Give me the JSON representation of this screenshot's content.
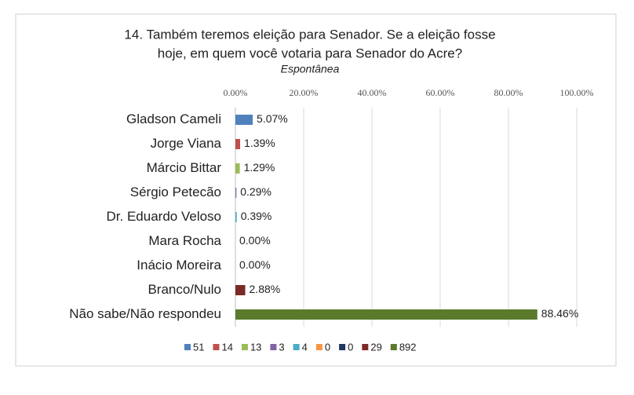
{
  "chart_data": {
    "type": "hbar",
    "title": [
      "14. Também teremos eleição para Senador. Se a eleição fosse",
      "hoje, em quem você votaria para Senador do Acre?"
    ],
    "subtitle": "Espontânea",
    "categories": [
      "Gladson Cameli",
      "Jorge Viana",
      "Márcio Bittar",
      "Sérgio Petecão",
      "Dr. Eduardo Veloso",
      "Mara Rocha",
      "Inácio Moreira",
      "Branco/Nulo",
      "Não sabe/Não respondeu"
    ],
    "values": [
      5.07,
      1.39,
      1.29,
      0.29,
      0.39,
      0,
      0,
      2.88,
      88.46
    ],
    "value_labels": [
      "5.07%",
      "1.39%",
      "1.29%",
      "0.29%",
      "0.39%",
      "0.00%",
      "0.00%",
      "2.88%",
      "88.46%"
    ],
    "colors": [
      "#4f81bd",
      "#c0504d",
      "#9bbb59",
      "#8064a2",
      "#4bacc6",
      "#f79646",
      "#1f3864",
      "#7b2a27",
      "#5b7a2c"
    ],
    "legend": [
      51,
      14,
      13,
      3,
      4,
      0,
      0,
      29,
      892
    ],
    "xlim": [
      0,
      100
    ],
    "xticks": [
      {
        "value": 0,
        "label": "0.00%"
      },
      {
        "value": 20,
        "label": "20.00%"
      },
      {
        "value": 40,
        "label": "40.00%"
      },
      {
        "value": 60,
        "label": "60.00%"
      },
      {
        "value": 80,
        "label": "80.00%"
      },
      {
        "value": 100,
        "label": "100.00%"
      }
    ],
    "grid": true
  }
}
